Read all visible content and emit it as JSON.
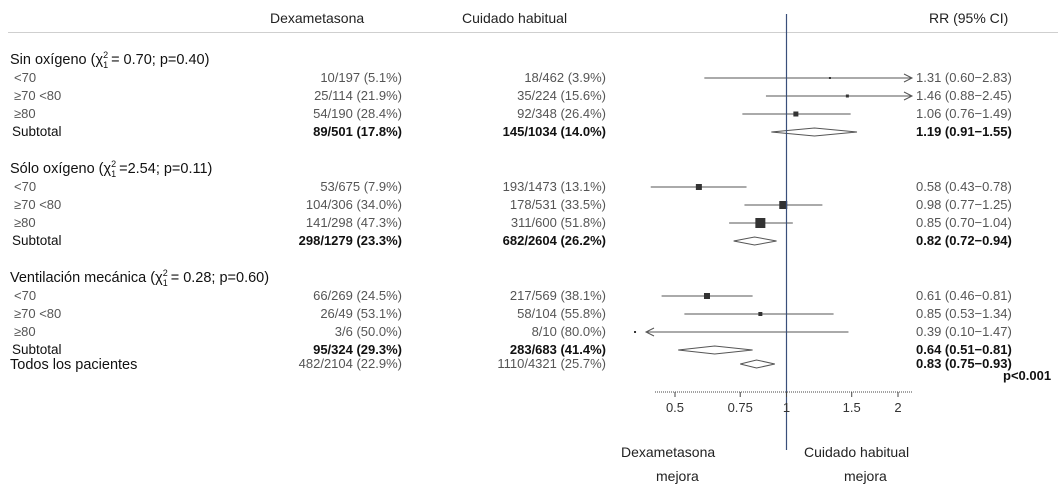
{
  "chart_data": {
    "type": "forest",
    "columns": {
      "treatment": "Dexametasona",
      "control": "Cuidado habitual",
      "effect": "RR (95% CI)"
    },
    "x_ticks": [
      "0.5",
      "0.75",
      "1",
      "1.5",
      "2"
    ],
    "x_scale": "log",
    "xlim": [
      0.38,
      2.85
    ],
    "reference_line": 1,
    "direction_left": [
      "Dexametasona",
      "mejora"
    ],
    "direction_right": [
      "Cuidado habitual",
      "mejora"
    ],
    "groups": [
      {
        "title": "Sin oxígeno (χ",
        "stat": "= 0.70; p=0.40)",
        "rows": [
          {
            "label": "<70",
            "treat": "10/197 (5.1%)",
            "ctrl": "18/462 (3.9%)",
            "rr": 1.31,
            "lo": 0.6,
            "hi": 2.83,
            "rr_text": "1.31 (0.60−2.83)"
          },
          {
            "label": "≥70 <80",
            "treat": "25/114 (21.9%)",
            "ctrl": "35/224 (15.6%)",
            "rr": 1.46,
            "lo": 0.88,
            "hi": 2.45,
            "rr_text": "1.46 (0.88−2.45)"
          },
          {
            "label": "≥80",
            "treat": "54/190 (28.4%)",
            "ctrl": "92/348 (26.4%)",
            "rr": 1.06,
            "lo": 0.76,
            "hi": 1.49,
            "rr_text": "1.06 (0.76−1.49)"
          }
        ],
        "subtotal": {
          "label": "Subtotal",
          "treat": "89/501 (17.8%)",
          "ctrl": "145/1034 (14.0%)",
          "rr": 1.19,
          "lo": 0.91,
          "hi": 1.55,
          "rr_text": "1.19 (0.91−1.55)"
        }
      },
      {
        "title": "Sólo oxígeno (χ",
        "stat": "=2.54; p=0.11)",
        "rows": [
          {
            "label": "<70",
            "treat": "53/675 (7.9%)",
            "ctrl": "193/1473 (13.1%)",
            "rr": 0.58,
            "lo": 0.43,
            "hi": 0.78,
            "rr_text": "0.58 (0.43−0.78)"
          },
          {
            "label": "≥70 <80",
            "treat": "104/306 (34.0%)",
            "ctrl": "178/531 (33.5%)",
            "rr": 0.98,
            "lo": 0.77,
            "hi": 1.25,
            "rr_text": "0.98 (0.77−1.25)"
          },
          {
            "label": "≥80",
            "treat": "141/298 (47.3%)",
            "ctrl": "311/600 (51.8%)",
            "rr": 0.85,
            "lo": 0.7,
            "hi": 1.04,
            "rr_text": "0.85 (0.70−1.04)"
          }
        ],
        "subtotal": {
          "label": "Subtotal",
          "treat": "298/1279 (23.3%)",
          "ctrl": "682/2604 (26.2%)",
          "rr": 0.82,
          "lo": 0.72,
          "hi": 0.94,
          "rr_text": "0.82 (0.72−0.94)"
        }
      },
      {
        "title": "Ventilación mecánica (χ",
        "stat": "= 0.28; p=0.60)",
        "rows": [
          {
            "label": "<70",
            "treat": "66/269 (24.5%)",
            "ctrl": "217/569 (38.1%)",
            "rr": 0.61,
            "lo": 0.46,
            "hi": 0.81,
            "rr_text": "0.61 (0.46−0.81)"
          },
          {
            "label": "≥70 <80",
            "treat": "26/49 (53.1%)",
            "ctrl": "58/104 (55.8%)",
            "rr": 0.85,
            "lo": 0.53,
            "hi": 1.34,
            "rr_text": "0.85 (0.53−1.34)"
          },
          {
            "label": "≥80",
            "treat": "3/6 (50.0%)",
            "ctrl": "8/10 (80.0%)",
            "rr": 0.39,
            "lo": 0.1,
            "hi": 1.47,
            "rr_text": "0.39 (0.10−1.47)"
          }
        ],
        "subtotal": {
          "label": "Subtotal",
          "treat": "95/324 (29.3%)",
          "ctrl": "283/683 (41.4%)",
          "rr": 0.64,
          "lo": 0.51,
          "hi": 0.81,
          "rr_text": "0.64 (0.51−0.81)"
        }
      }
    ],
    "overall": {
      "label": "Todos los pacientes",
      "treat": "482/2104 (22.9%)",
      "ctrl": "1110/4321 (25.7%)",
      "rr": 0.83,
      "lo": 0.75,
      "hi": 0.93,
      "rr_text": "0.83 (0.75−0.93)",
      "p_text": "p<0.001"
    },
    "colors": {
      "text": "#2a2a2a",
      "marker": "#333333",
      "line": "#555555",
      "axis": "#444444",
      "reference": "#3a4f7a"
    }
  }
}
